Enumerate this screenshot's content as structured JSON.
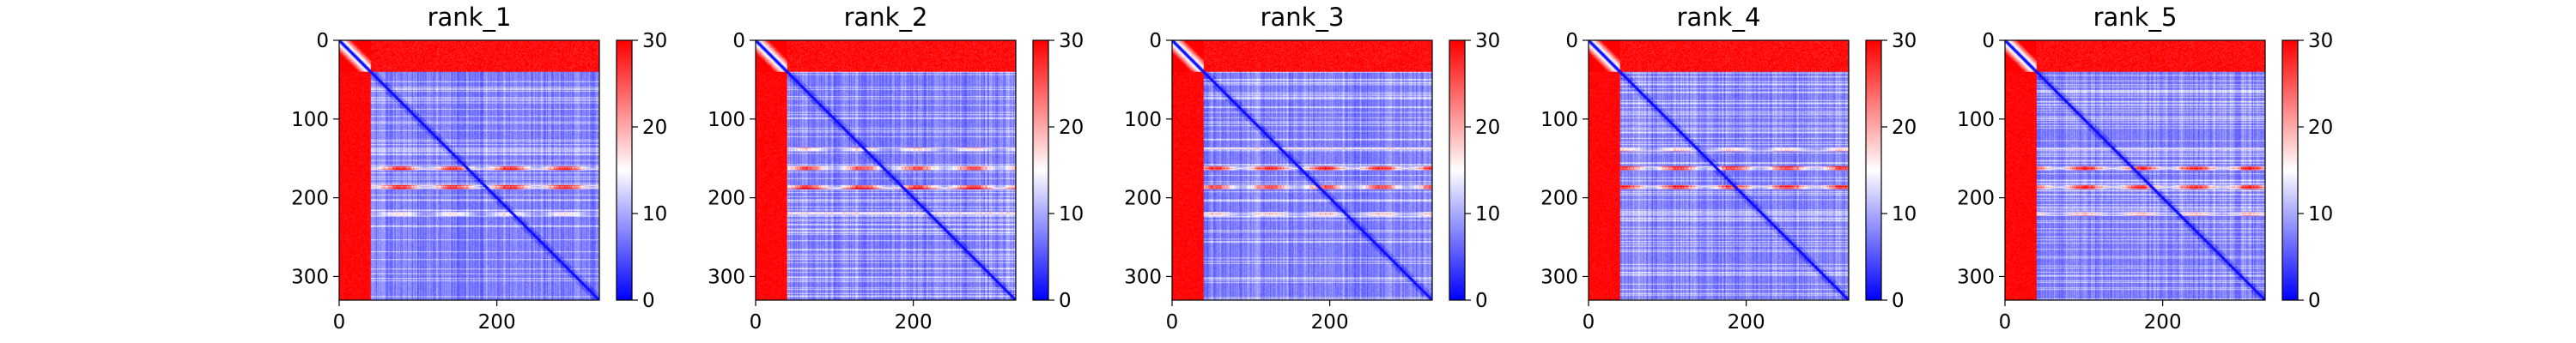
{
  "chart_data": [
    {
      "type": "heatmap",
      "title": "rank_1",
      "xlim": [
        0,
        330
      ],
      "ylim": [
        330,
        0
      ],
      "x_ticks": [
        0,
        200
      ],
      "y_ticks": [
        0,
        100,
        200,
        300
      ],
      "colorbar": {
        "range": [
          0,
          30
        ],
        "ticks": [
          0,
          10,
          20,
          30
        ],
        "colormap": "bwr"
      },
      "features": {
        "n_residues": 330,
        "n_term_disordered": 40,
        "helix_bands": [
          138,
          162,
          186,
          220
        ],
        "band_variant": 1
      }
    },
    {
      "type": "heatmap",
      "title": "rank_2",
      "xlim": [
        0,
        330
      ],
      "ylim": [
        330,
        0
      ],
      "x_ticks": [
        0,
        200
      ],
      "y_ticks": [
        0,
        100,
        200,
        300
      ],
      "colorbar": {
        "range": [
          0,
          30
        ],
        "ticks": [
          0,
          10,
          20,
          30
        ],
        "colormap": "bwr"
      },
      "features": {
        "n_residues": 330,
        "n_term_disordered": 40,
        "helix_bands": [
          138,
          162,
          186,
          220
        ],
        "band_variant": 2
      }
    },
    {
      "type": "heatmap",
      "title": "rank_3",
      "xlim": [
        0,
        330
      ],
      "ylim": [
        330,
        0
      ],
      "x_ticks": [
        0,
        200
      ],
      "y_ticks": [
        0,
        100,
        200,
        300
      ],
      "colorbar": {
        "range": [
          0,
          30
        ],
        "ticks": [
          0,
          10,
          20,
          30
        ],
        "colormap": "bwr"
      },
      "features": {
        "n_residues": 330,
        "n_term_disordered": 40,
        "helix_bands": [
          138,
          162,
          186,
          220
        ],
        "band_variant": 3
      }
    },
    {
      "type": "heatmap",
      "title": "rank_4",
      "xlim": [
        0,
        330
      ],
      "ylim": [
        330,
        0
      ],
      "x_ticks": [
        0,
        200
      ],
      "y_ticks": [
        0,
        100,
        200,
        300
      ],
      "colorbar": {
        "range": [
          0,
          30
        ],
        "ticks": [
          0,
          10,
          20,
          30
        ],
        "colormap": "bwr"
      },
      "features": {
        "n_residues": 330,
        "n_term_disordered": 40,
        "helix_bands": [
          138,
          162,
          186,
          220
        ],
        "band_variant": 4
      }
    },
    {
      "type": "heatmap",
      "title": "rank_5",
      "xlim": [
        0,
        330
      ],
      "ylim": [
        330,
        0
      ],
      "x_ticks": [
        0,
        200
      ],
      "y_ticks": [
        0,
        100,
        200,
        300
      ],
      "colorbar": {
        "range": [
          0,
          30
        ],
        "ticks": [
          0,
          10,
          20,
          30
        ],
        "colormap": "bwr"
      },
      "features": {
        "n_residues": 330,
        "n_term_disordered": 40,
        "helix_bands": [
          138,
          162,
          186,
          220
        ],
        "band_variant": 5
      }
    }
  ]
}
